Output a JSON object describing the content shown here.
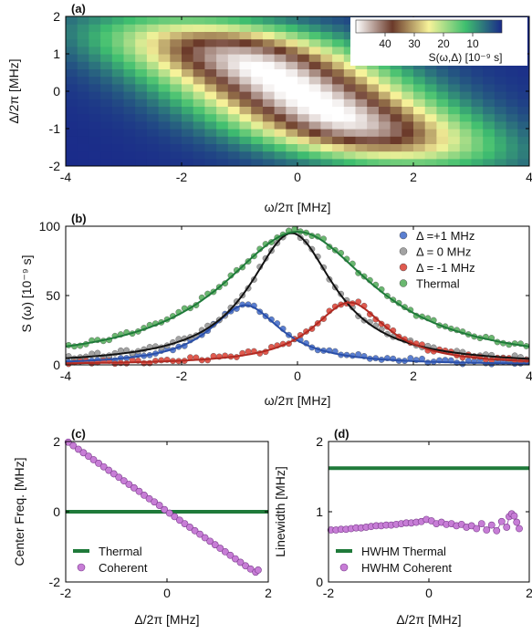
{
  "chart_data": [
    {
      "panel": "(a)",
      "type": "heatmap",
      "xlabel": "ω/2π [MHz]",
      "ylabel": "Δ/2π [MHz]",
      "xlim": [
        -4,
        4
      ],
      "ylim": [
        -2,
        2
      ],
      "xticks": [
        "-4",
        "-2",
        "0",
        "2",
        "4"
      ],
      "yticks": [
        "-2",
        "-1",
        "0",
        "1",
        "2"
      ],
      "colorbar": {
        "label": "S(ω,Δ) [10⁻⁹ s]",
        "ticks": [
          "40",
          "30",
          "20",
          "10"
        ],
        "range": [
          50,
          0
        ],
        "colors": [
          "#ffffff",
          "#6b3a2a",
          "#f7f39a",
          "#3fbf6f",
          "#1a2a8a"
        ]
      },
      "model": {
        "peak": 48,
        "center_slope": -0.5,
        "sigma_parallel": 1.3,
        "sigma_perp": 0.42
      }
    },
    {
      "panel": "(b)",
      "type": "line",
      "xlabel": "ω/2π [MHz]",
      "ylabel": "S (ω) [10⁻⁹ s]",
      "xlim": [
        -4,
        4
      ],
      "ylim": [
        0,
        100
      ],
      "xticks": [
        "-4",
        "-2",
        "0",
        "2",
        "4"
      ],
      "yticks": [
        "0",
        "50",
        "100"
      ],
      "legend": "top-right",
      "series": [
        {
          "name": "Δ =+1 MHz",
          "color": "#5b7fd1",
          "center": -0.9,
          "hwhm": 0.75,
          "peak": 43,
          "baseline": 0
        },
        {
          "name": "Δ =  0 MHz",
          "color": "#a3a3a3",
          "center": -0.1,
          "hwhm": 0.9,
          "peak": 95,
          "baseline": 0
        },
        {
          "name": "Δ = -1 MHz",
          "color": "#e05a4f",
          "center": 0.9,
          "hwhm": 0.78,
          "peak": 45,
          "baseline": 0
        },
        {
          "name": "Thermal",
          "color": "#6ab870",
          "center": 0.0,
          "hwhm": 1.6,
          "peak": 96,
          "baseline": 0
        }
      ]
    },
    {
      "panel": "(c)",
      "type": "scatter",
      "xlabel": "Δ/2π [MHz]",
      "ylabel": "Center Freq. [MHz]",
      "xlim": [
        -2,
        2
      ],
      "ylim": [
        -2,
        2
      ],
      "xticks": [
        "-2",
        "0",
        "2"
      ],
      "yticks": [
        "-2",
        "0",
        "2"
      ],
      "legend": "bottom-left",
      "series": [
        {
          "name": "Thermal",
          "kind": "line",
          "color": "#1f7a3a",
          "x": [
            -2,
            2
          ],
          "values": [
            0,
            0
          ]
        },
        {
          "name": "Coherent",
          "kind": "points",
          "color": "#c77dd6",
          "x": [
            -1.95,
            -1.85,
            -1.75,
            -1.65,
            -1.55,
            -1.45,
            -1.35,
            -1.25,
            -1.15,
            -1.05,
            -0.95,
            -0.85,
            -0.75,
            -0.65,
            -0.55,
            -0.45,
            -0.35,
            -0.25,
            -0.15,
            -0.05,
            0.05,
            0.15,
            0.25,
            0.35,
            0.45,
            0.55,
            0.65,
            0.75,
            0.85,
            0.95,
            1.05,
            1.15,
            1.25,
            1.35,
            1.45,
            1.55,
            1.65,
            1.75,
            1.8
          ],
          "values": [
            1.98,
            1.88,
            1.78,
            1.68,
            1.58,
            1.48,
            1.38,
            1.28,
            1.18,
            1.08,
            0.98,
            0.88,
            0.78,
            0.68,
            0.58,
            0.47,
            0.37,
            0.28,
            0.18,
            0.06,
            -0.04,
            -0.14,
            -0.24,
            -0.34,
            -0.44,
            -0.54,
            -0.64,
            -0.74,
            -0.84,
            -0.94,
            -1.04,
            -1.14,
            -1.24,
            -1.34,
            -1.44,
            -1.54,
            -1.63,
            -1.72,
            -1.66
          ]
        }
      ]
    },
    {
      "panel": "(d)",
      "type": "scatter",
      "xlabel": "Δ/2π [MHz]",
      "ylabel": "Linewidth [MHz]",
      "xlim": [
        -2,
        2
      ],
      "ylim": [
        0,
        2
      ],
      "xticks": [
        "-2",
        "0",
        "2"
      ],
      "yticks": [
        "0",
        "1",
        "2"
      ],
      "legend": "bottom-left",
      "series": [
        {
          "name": "HWHM Thermal",
          "kind": "line",
          "color": "#1f7a3a",
          "x": [
            -2,
            2
          ],
          "values": [
            1.62,
            1.62
          ]
        },
        {
          "name": "HWHM Coherent",
          "kind": "points",
          "color": "#c77dd6",
          "x": [
            -1.95,
            -1.85,
            -1.75,
            -1.65,
            -1.55,
            -1.45,
            -1.35,
            -1.25,
            -1.15,
            -1.05,
            -0.95,
            -0.85,
            -0.75,
            -0.65,
            -0.55,
            -0.45,
            -0.35,
            -0.25,
            -0.15,
            -0.05,
            0.05,
            0.15,
            0.25,
            0.35,
            0.45,
            0.55,
            0.65,
            0.75,
            0.85,
            0.95,
            1.05,
            1.15,
            1.25,
            1.35,
            1.45,
            1.55,
            1.6,
            1.65,
            1.7,
            1.75,
            1.8
          ],
          "values": [
            0.74,
            0.74,
            0.75,
            0.75,
            0.76,
            0.77,
            0.77,
            0.78,
            0.79,
            0.8,
            0.8,
            0.81,
            0.81,
            0.82,
            0.83,
            0.84,
            0.84,
            0.85,
            0.86,
            0.89,
            0.87,
            0.83,
            0.85,
            0.82,
            0.83,
            0.8,
            0.82,
            0.78,
            0.8,
            0.76,
            0.83,
            0.74,
            0.81,
            0.73,
            0.86,
            0.78,
            0.93,
            0.97,
            0.94,
            0.85,
            0.76
          ]
        }
      ]
    }
  ]
}
